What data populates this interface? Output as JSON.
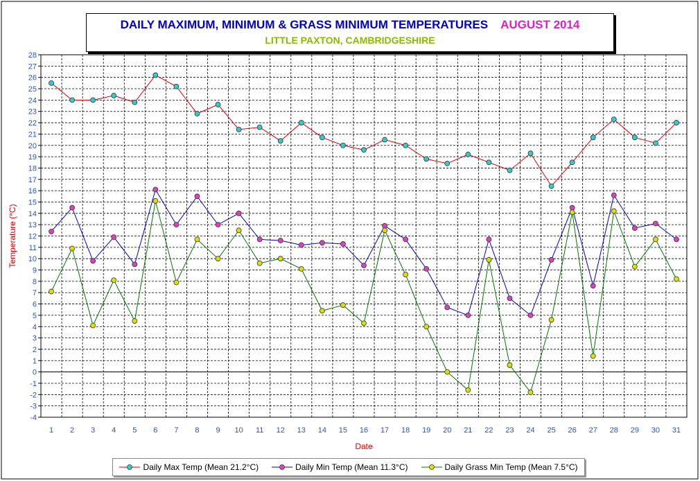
{
  "chart_data": {
    "type": "line",
    "title": "DAILY MAXIMUM, MINIMUM & GRASS MINIMUM TEMPERATURES",
    "title_month": "AUGUST 2014",
    "subtitle": "LITTLE PAXTON, CAMBRIDGESHIRE",
    "xlabel": "Date",
    "ylabel": "Temperature (°C)",
    "ylim": [
      -4,
      28
    ],
    "y_tick_step": 1,
    "grid": true,
    "legend_position": "bottom",
    "x": [
      1,
      2,
      3,
      4,
      5,
      6,
      7,
      8,
      9,
      10,
      11,
      12,
      13,
      14,
      15,
      16,
      17,
      18,
      19,
      20,
      21,
      22,
      23,
      24,
      25,
      26,
      27,
      28,
      29,
      30,
      31
    ],
    "series": [
      {
        "name": "Daily Max Temp (Mean 21.2°C)",
        "line_color": "#e00000",
        "marker_color": "#33cccc",
        "values": [
          25.5,
          24.0,
          24.0,
          24.4,
          23.8,
          26.2,
          25.2,
          22.8,
          23.6,
          21.4,
          21.6,
          20.4,
          22.0,
          20.7,
          20.0,
          19.6,
          20.5,
          20.0,
          18.8,
          18.4,
          19.2,
          18.5,
          17.8,
          19.3,
          16.4,
          18.5,
          20.7,
          22.3,
          20.7,
          20.2,
          22.0
        ]
      },
      {
        "name": "Daily Min Temp (Mean 11.3°C)",
        "line_color": "#0000cc",
        "marker_color": "#e040c0",
        "values": [
          12.4,
          14.5,
          9.8,
          11.9,
          9.5,
          16.1,
          13.0,
          15.5,
          13.0,
          14.0,
          11.7,
          11.6,
          11.2,
          11.4,
          11.3,
          9.4,
          12.9,
          11.7,
          9.1,
          5.7,
          5.0,
          11.7,
          6.5,
          5.0,
          9.9,
          14.5,
          7.6,
          15.6,
          12.7,
          13.1,
          11.7
        ]
      },
      {
        "name": "Daily Grass Min Temp (Mean 7.5°C)",
        "line_color": "#007700",
        "marker_color": "#e0e000",
        "values": [
          7.1,
          10.9,
          4.1,
          8.1,
          4.5,
          15.1,
          7.9,
          11.7,
          10.0,
          12.5,
          9.6,
          10.0,
          9.1,
          5.4,
          5.9,
          4.3,
          12.5,
          8.6,
          4.0,
          0.0,
          -1.6,
          9.9,
          0.6,
          -1.8,
          4.6,
          14.1,
          1.4,
          14.2,
          9.3,
          11.7,
          8.2
        ]
      }
    ]
  }
}
